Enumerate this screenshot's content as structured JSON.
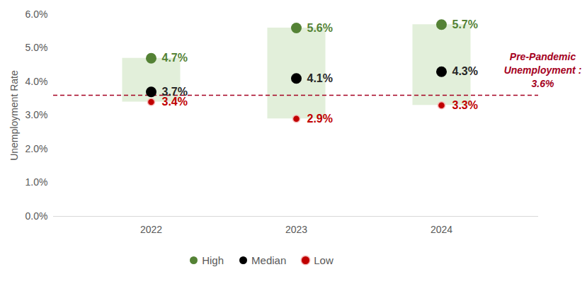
{
  "chart_data": {
    "type": "range",
    "categories": [
      "2022",
      "2023",
      "2024"
    ],
    "series": [
      {
        "name": "High",
        "color": "#548235",
        "values": [
          4.7,
          5.6,
          5.7
        ],
        "value_labels": [
          "4.7%",
          "5.6%",
          "5.7%"
        ]
      },
      {
        "name": "Median",
        "color": "#000000",
        "values": [
          3.7,
          4.1,
          4.3
        ],
        "value_labels": [
          "3.7%",
          "4.1%",
          "4.3%"
        ]
      },
      {
        "name": "Low",
        "color": "#c00000",
        "values": [
          3.4,
          2.9,
          3.3
        ],
        "value_labels": [
          "3.4%",
          "2.9%",
          "3.3%"
        ]
      }
    ],
    "color": "#e2efda",
    "ylabel": "Unemployment Rate",
    "ylim": [
      0,
      6
    ],
    "yticks": [
      {
        "value": 0,
        "label": "0.0%"
      },
      {
        "value": 1,
        "label": "1.0%"
      },
      {
        "value": 2,
        "label": "2.0%"
      },
      {
        "value": 3,
        "label": "3.0%"
      },
      {
        "value": 4,
        "label": "4.0%"
      },
      {
        "value": 5,
        "label": "5.0%"
      },
      {
        "value": 6,
        "label": "6.0%"
      }
    ],
    "grid": false,
    "data_labels": true,
    "legend": "bottom",
    "reference_line": {
      "value": 3.6,
      "text": [
        "Pre-Pandemic",
        "Unemployment :",
        "3.6%"
      ],
      "color": "#a50021",
      "line_style": "dashed"
    }
  }
}
